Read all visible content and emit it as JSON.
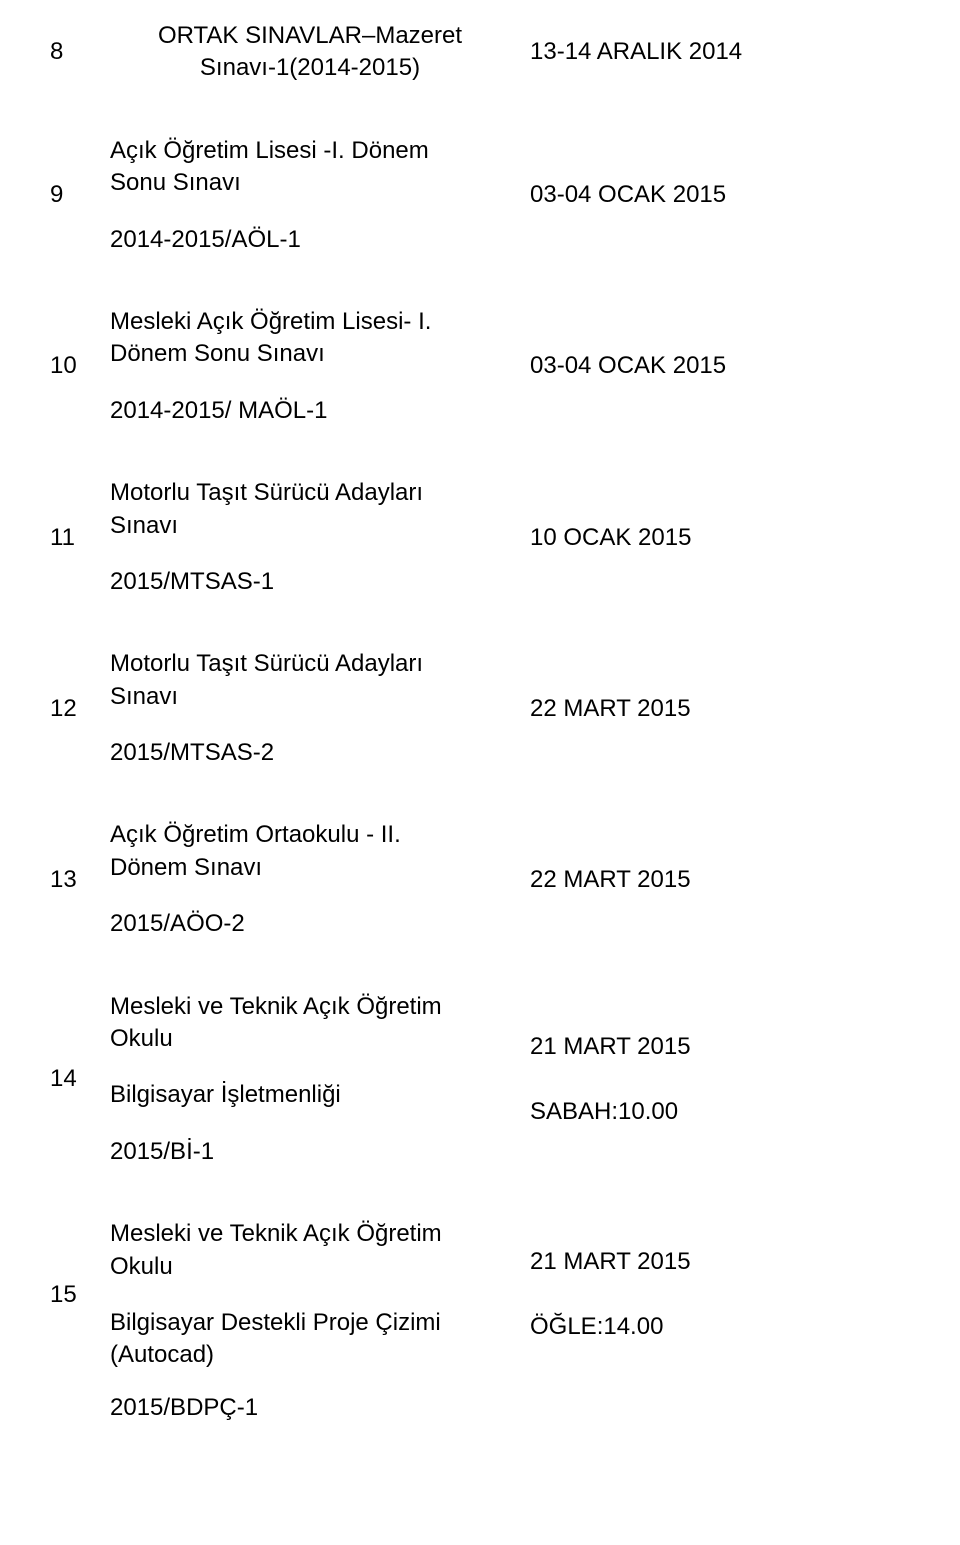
{
  "rows": [
    {
      "num": "8",
      "desc_lines": [
        "ORTAK SINAVLAR–Mazeret",
        "Sınavı-1(2014-2015)"
      ],
      "desc_align": "center",
      "code": "",
      "date_lines": [
        "13-14 ARALIK 2014"
      ]
    },
    {
      "num": "9",
      "desc_lines": [
        "Açık Öğretim Lisesi -I. Dönem",
        "Sonu Sınavı"
      ],
      "desc_align": "left",
      "code": "2014-2015/AÖL-1",
      "date_lines": [
        "03-04 OCAK 2015"
      ]
    },
    {
      "num": "10",
      "desc_lines": [
        "Mesleki Açık Öğretim Lisesi- I.",
        "Dönem Sonu Sınavı"
      ],
      "desc_align": "left",
      "code": "2014-2015/   MAÖL-1",
      "date_lines": [
        "03-04 OCAK 2015"
      ]
    },
    {
      "num": "11",
      "desc_lines": [
        "Motorlu Taşıt Sürücü Adayları",
        "Sınavı"
      ],
      "desc_align": "left",
      "code": "2015/MTSAS-1",
      "date_lines": [
        "10 OCAK 2015"
      ]
    },
    {
      "num": "12",
      "desc_lines": [
        "Motorlu Taşıt Sürücü Adayları",
        "Sınavı"
      ],
      "desc_align": "left",
      "code": "2015/MTSAS-2",
      "date_lines": [
        "22 MART 2015"
      ]
    },
    {
      "num": "13",
      "desc_lines": [
        "Açık Öğretim Ortaokulu - II.",
        "Dönem Sınavı"
      ],
      "desc_align": "left",
      "code": "2015/AÖO-2",
      "date_lines": [
        "22 MART 2015"
      ]
    },
    {
      "num": "14",
      "desc_lines": [
        "Mesleki ve Teknik Açık Öğretim",
        "Okulu"
      ],
      "desc_align": "left",
      "extra_line": "Bilgisayar İşletmenliği",
      "code": "2015/Bİ-1",
      "date_lines": [
        "21 MART 2015",
        "",
        "SABAH:10.00"
      ]
    },
    {
      "num": "15",
      "desc_lines": [
        "Mesleki ve Teknik Açık Öğretim",
        "Okulu"
      ],
      "desc_align": "left",
      "extra_line": "Bilgisayar Destekli Proje Çizimi",
      "extra_line2": "(Autocad)",
      "code": "",
      "date_lines": [
        "21 MART 2015",
        "",
        "ÖĞLE:14.00"
      ]
    }
  ],
  "footer_code": "2015/BDPÇ-1",
  "style": {
    "font_size_pt": 18,
    "text_color": "#000000",
    "background": "#ffffff"
  }
}
